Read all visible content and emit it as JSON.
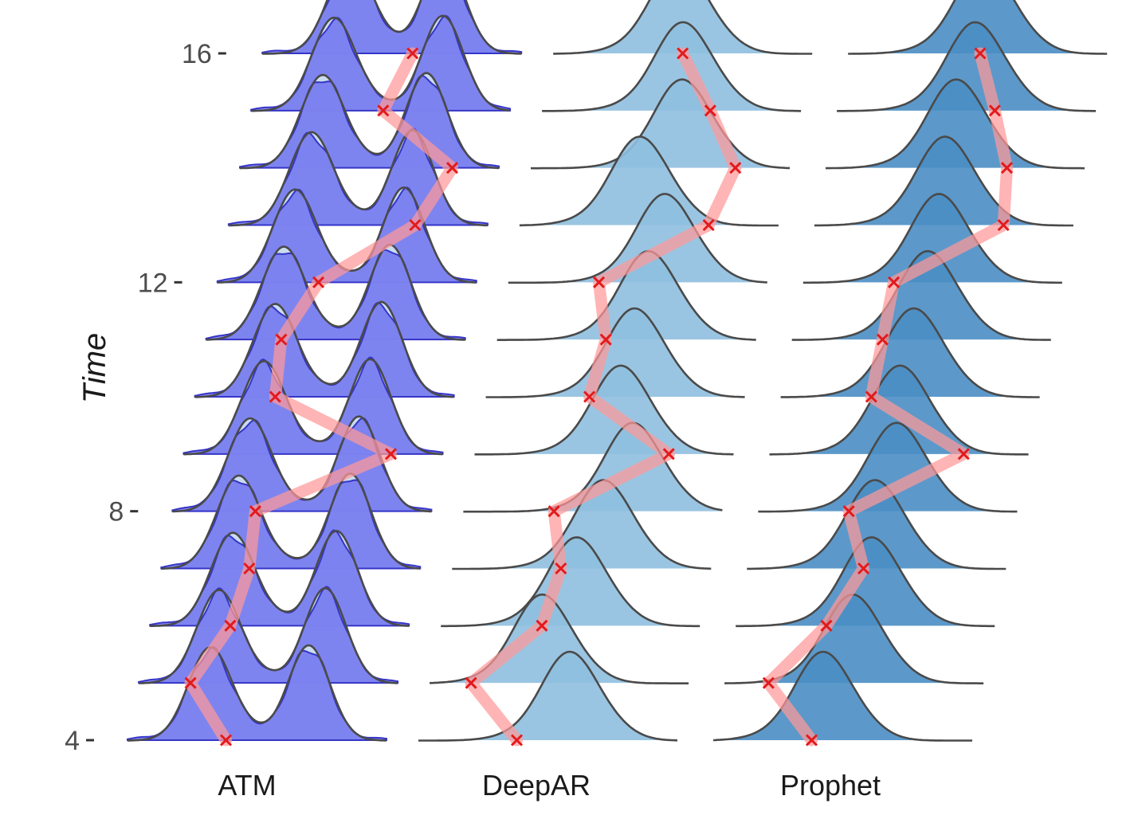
{
  "chart_data": {
    "type": "ridgeline",
    "ylabel": "Time",
    "yticks": [
      "4",
      "8",
      "12",
      "16"
    ],
    "time_range": [
      4,
      16
    ],
    "panels": [
      {
        "name": "ATM",
        "fill_color": "#cfe1ee",
        "sample_color": "#5b5bef",
        "bimodal": true,
        "observed_offset": [
          0.38,
          0.2,
          0.31,
          0.34,
          0.32,
          0.8,
          0.31,
          0.29,
          0.39,
          0.72,
          0.82,
          0.51,
          0.58
        ],
        "density_peak_offset": [
          [
            0.32,
            0.7
          ],
          [
            0.31,
            0.72
          ],
          [
            0.32,
            0.72
          ],
          [
            0.3,
            0.73
          ],
          [
            0.3,
            0.72
          ],
          [
            0.31,
            0.72
          ],
          [
            0.31,
            0.72
          ],
          [
            0.3,
            0.71
          ],
          [
            0.3,
            0.72
          ],
          [
            0.32,
            0.71
          ],
          [
            0.32,
            0.72
          ],
          [
            0.32,
            0.74
          ],
          [
            0.34,
            0.7
          ]
        ]
      },
      {
        "name": "DeepAR",
        "fill_color": "#8fbfdf",
        "bimodal": false,
        "observed_offset": [
          0.38,
          0.16,
          0.39,
          0.42,
          0.35,
          0.75,
          0.4,
          0.42,
          0.35,
          0.73,
          0.79,
          0.65,
          0.5
        ],
        "density_peak_offset": [
          0.58,
          0.43,
          0.52,
          0.58,
          0.65,
          0.56,
          0.57,
          0.58,
          0.6,
          0.46,
          0.58,
          0.54,
          0.48
        ]
      },
      {
        "name": "Prophet",
        "fill_color": "#4a8ec4",
        "bimodal": false,
        "observed_offset": [
          0.38,
          0.17,
          0.35,
          0.45,
          0.35,
          0.75,
          0.35,
          0.35,
          0.35,
          0.73,
          0.7,
          0.61,
          0.51
        ],
        "density_peak_offset": [
          0.42,
          0.49,
          0.52,
          0.49,
          0.53,
          0.5,
          0.51,
          0.52,
          0.52,
          0.5,
          0.5,
          0.53,
          0.52
        ]
      }
    ],
    "colors": {
      "trajectory": "#ff9999",
      "observed_marker": "#e31a1c",
      "outline": "#4a4a4a",
      "tick": "#333333"
    }
  }
}
